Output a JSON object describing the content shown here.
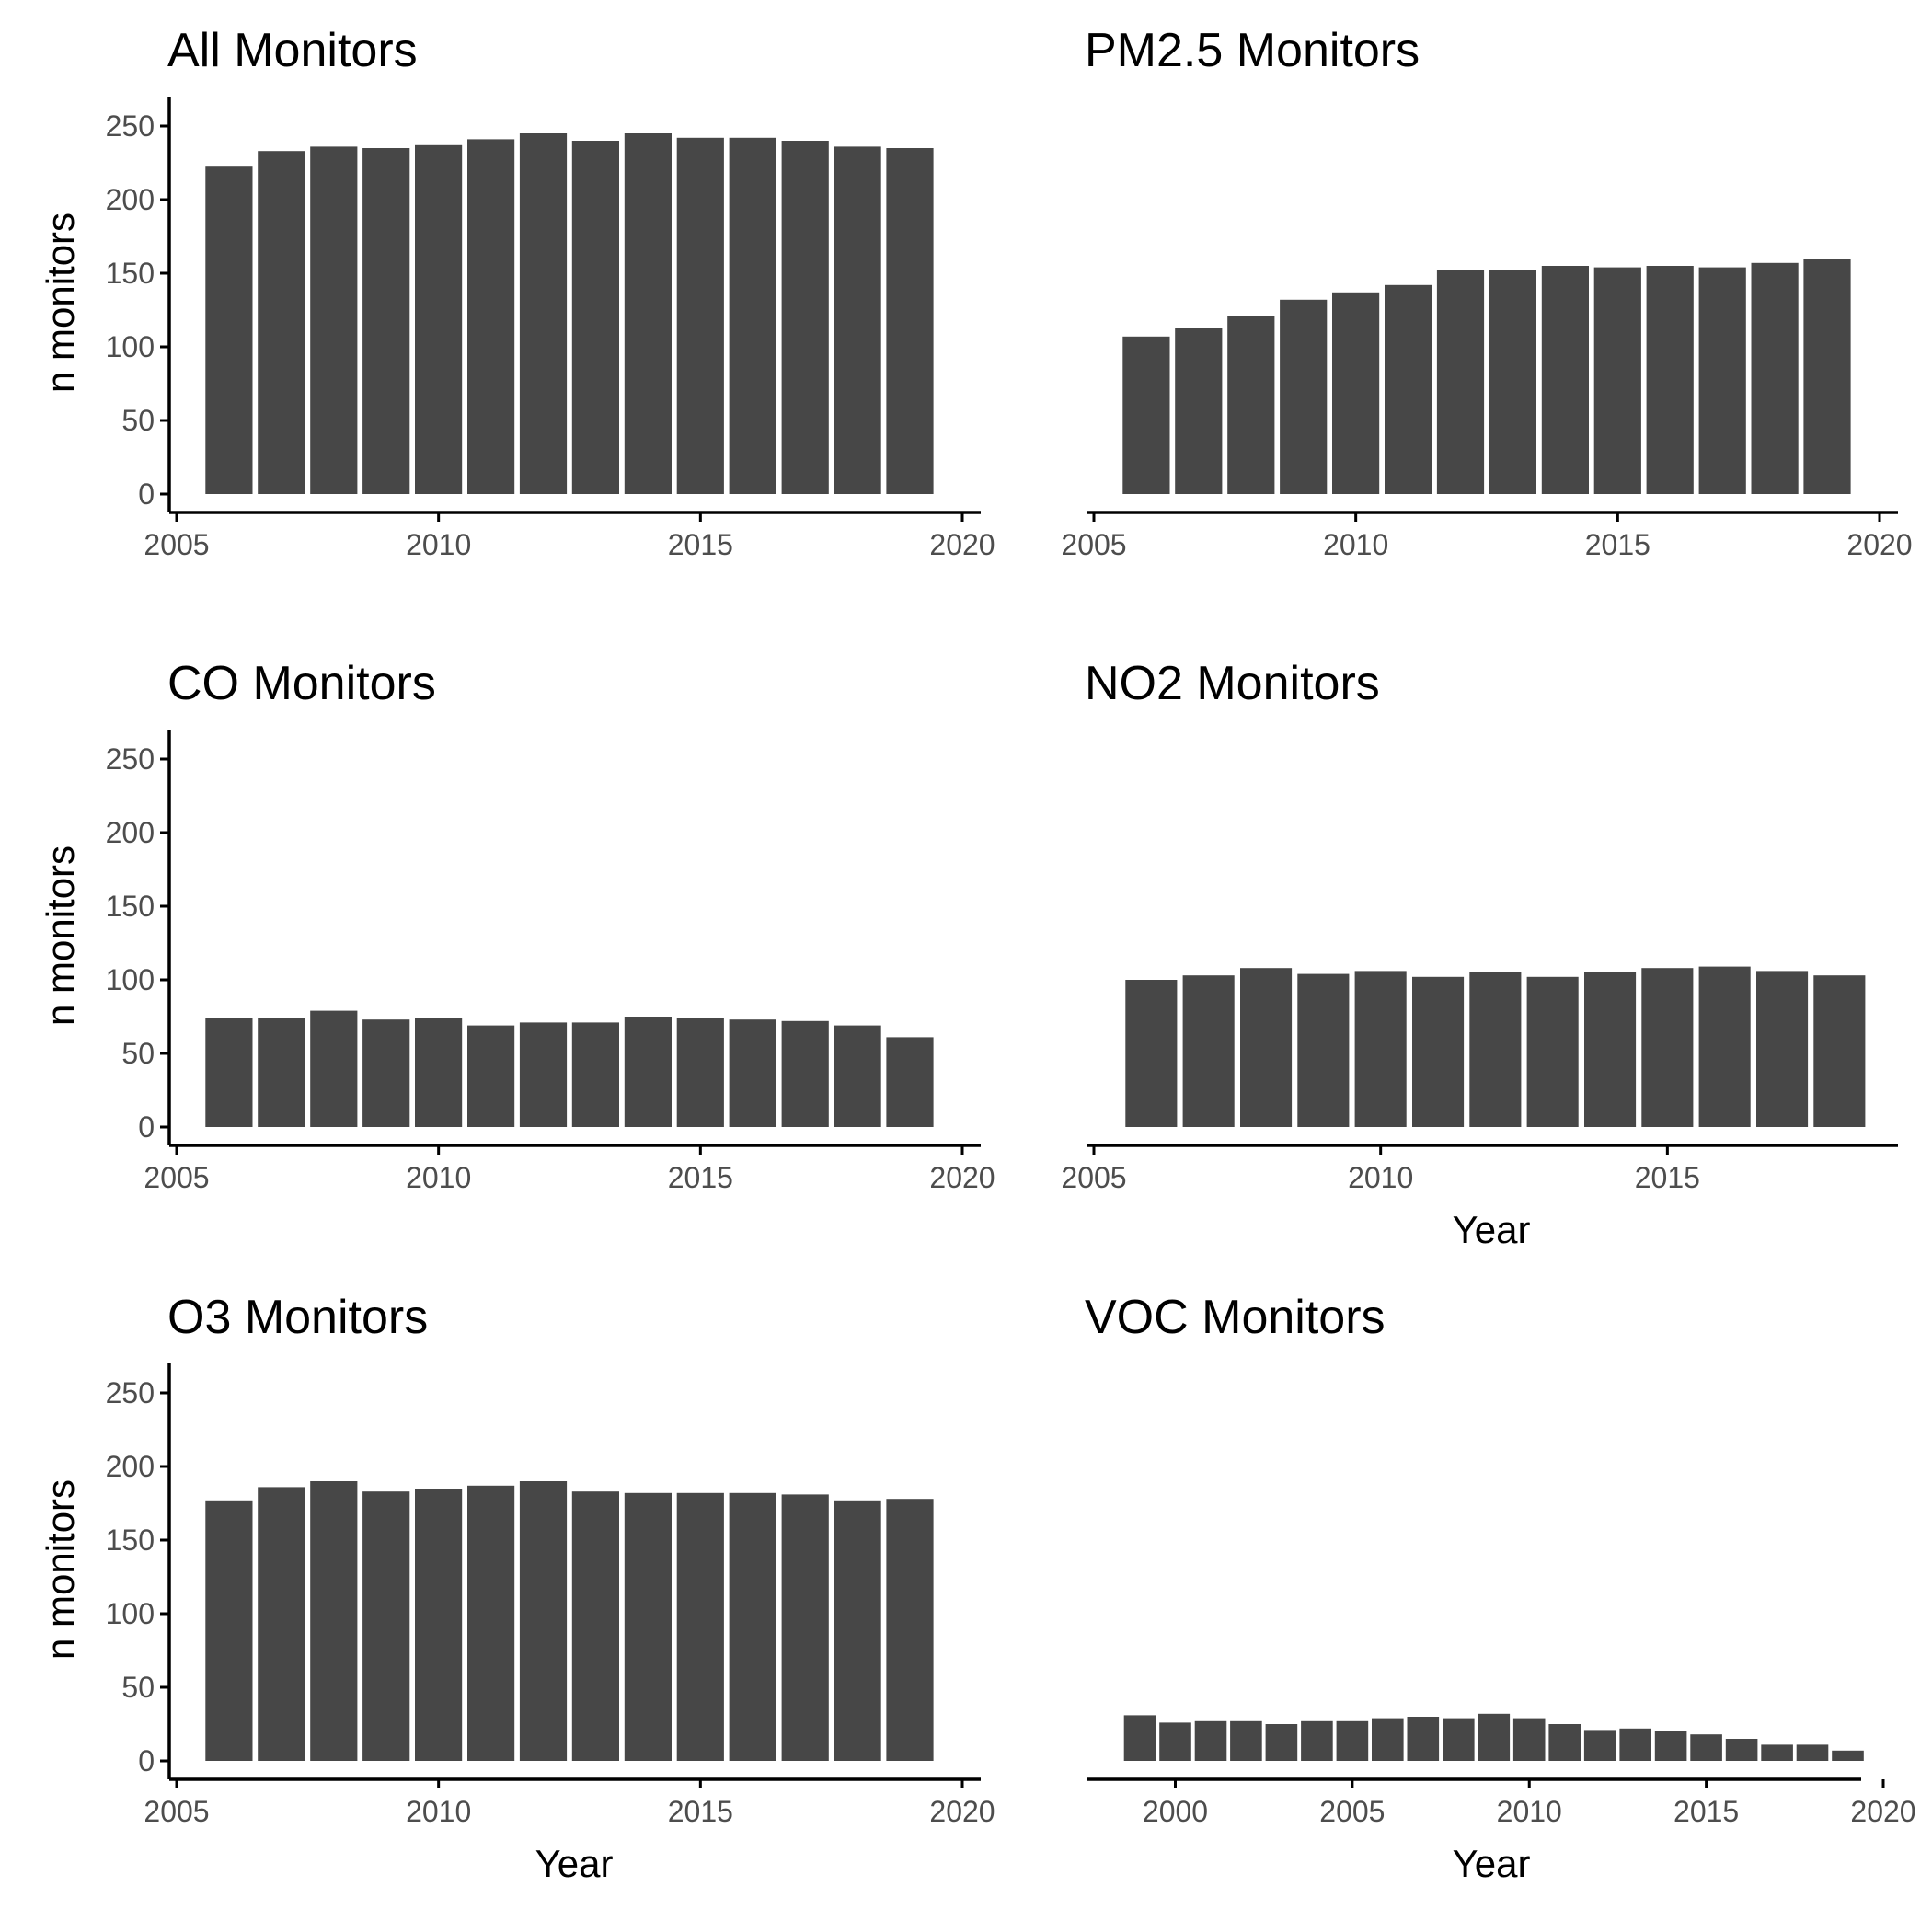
{
  "colors": {
    "bar": "#474747",
    "axis": "#000000",
    "tick_label": "#4d4d4d",
    "background": "#ffffff"
  },
  "chart_data": [
    {
      "type": "bar",
      "title": "All Monitors",
      "ylabel": "n monitors",
      "xlabel": "",
      "ylim": [
        0,
        260
      ],
      "xlim": [
        2005,
        2020
      ],
      "yticks": [
        0,
        50,
        100,
        150,
        200,
        250
      ],
      "xticks": [
        2005,
        2010,
        2015,
        2020
      ],
      "x": [
        2006,
        2007,
        2008,
        2009,
        2010,
        2011,
        2012,
        2013,
        2014,
        2015,
        2016,
        2017,
        2018,
        2019
      ],
      "values": [
        223,
        233,
        236,
        235,
        237,
        241,
        245,
        240,
        245,
        242,
        242,
        240,
        236,
        235
      ]
    },
    {
      "type": "bar",
      "title": "PM2.5 Monitors",
      "ylabel": "",
      "xlabel": "",
      "ylim": [
        0,
        260
      ],
      "xlim": [
        2005,
        2020
      ],
      "yticks": [],
      "xticks": [
        2005,
        2010,
        2015,
        2020
      ],
      "x": [
        2006,
        2007,
        2008,
        2009,
        2010,
        2011,
        2012,
        2013,
        2014,
        2015,
        2016,
        2017,
        2018,
        2019
      ],
      "values": [
        107,
        113,
        121,
        132,
        137,
        142,
        152,
        152,
        155,
        154,
        155,
        154,
        157,
        160
      ]
    },
    {
      "type": "bar",
      "title": "CO Monitors",
      "ylabel": "n monitors",
      "xlabel": "",
      "ylim": [
        0,
        260
      ],
      "xlim": [
        2005,
        2020
      ],
      "yticks": [
        0,
        50,
        100,
        150,
        200,
        250
      ],
      "xticks": [
        2005,
        2010,
        2015,
        2020
      ],
      "x": [
        2006,
        2007,
        2008,
        2009,
        2010,
        2011,
        2012,
        2013,
        2014,
        2015,
        2016,
        2017,
        2018,
        2019
      ],
      "values": [
        74,
        74,
        79,
        73,
        74,
        69,
        71,
        71,
        75,
        74,
        73,
        72,
        69,
        61
      ]
    },
    {
      "type": "bar",
      "title": "NO2 Monitors",
      "ylabel": "",
      "xlabel": "Year",
      "ylim": [
        0,
        260
      ],
      "xlim": [
        2005,
        2018.7
      ],
      "yticks": [],
      "xticks": [
        2005,
        2010,
        2015
      ],
      "x": [
        2006,
        2007,
        2008,
        2009,
        2010,
        2011,
        2012,
        2013,
        2014,
        2015,
        2016,
        2017,
        2018
      ],
      "values": [
        100,
        103,
        108,
        104,
        106,
        102,
        105,
        102,
        105,
        108,
        109,
        106,
        103
      ]
    },
    {
      "type": "bar",
      "title": "O3 Monitors",
      "ylabel": "n monitors",
      "xlabel": "Year",
      "ylim": [
        0,
        260
      ],
      "xlim": [
        2005,
        2020
      ],
      "yticks": [
        0,
        50,
        100,
        150,
        200,
        250
      ],
      "xticks": [
        2005,
        2010,
        2015,
        2020
      ],
      "x": [
        2006,
        2007,
        2008,
        2009,
        2010,
        2011,
        2012,
        2013,
        2014,
        2015,
        2016,
        2017,
        2018,
        2019
      ],
      "values": [
        177,
        186,
        190,
        183,
        185,
        187,
        190,
        183,
        182,
        182,
        182,
        181,
        177,
        178
      ]
    },
    {
      "type": "bar",
      "title": "VOC Monitors",
      "ylabel": "",
      "xlabel": "Year",
      "ylim": [
        0,
        260
      ],
      "xlim": [
        1997.7,
        2020
      ],
      "yticks": [],
      "xticks": [
        2000,
        2005,
        2010,
        2015,
        2020
      ],
      "x": [
        1999,
        2000,
        2001,
        2002,
        2003,
        2004,
        2005,
        2006,
        2007,
        2008,
        2009,
        2010,
        2011,
        2012,
        2013,
        2014,
        2015,
        2016,
        2017,
        2018,
        2019
      ],
      "values": [
        31,
        26,
        27,
        27,
        25,
        27,
        27,
        29,
        30,
        29,
        32,
        29,
        25,
        21,
        22,
        20,
        18,
        15,
        11,
        11,
        7
      ]
    }
  ]
}
